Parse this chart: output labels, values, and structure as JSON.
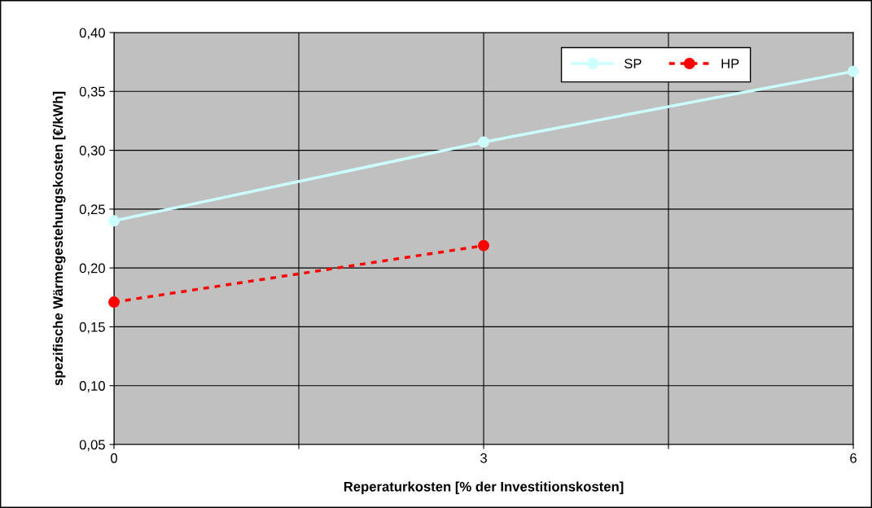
{
  "chart_data": {
    "type": "line",
    "xlabel": "Reperaturkosten [% der Investitionskosten]",
    "ylabel": "spezifische Wärmegestehungskosten [€/kWh]",
    "x": [
      0,
      3,
      6
    ],
    "series": [
      {
        "name": "SP",
        "color": "#ccffff",
        "values": [
          0.24,
          0.307,
          0.367
        ],
        "line_style": "solid"
      },
      {
        "name": "HP",
        "color": "#ff0000",
        "values": [
          0.171,
          0.219,
          null
        ],
        "line_style": "dashed"
      }
    ],
    "xlim": [
      0,
      6
    ],
    "xticks": [
      0,
      {
        "value": 1.5,
        "label": null
      },
      3,
      {
        "value": 4.5,
        "label": null
      },
      6
    ],
    "ylim": [
      0.05,
      0.4
    ],
    "yticks": [
      {
        "value": 0.05,
        "label": "0,05"
      },
      {
        "value": 0.1,
        "label": "0,10"
      },
      {
        "value": 0.15,
        "label": "0,15"
      },
      {
        "value": 0.2,
        "label": "0,20"
      },
      {
        "value": 0.25,
        "label": "0,25"
      },
      {
        "value": 0.3,
        "label": "0,30"
      },
      {
        "value": 0.35,
        "label": "0,35"
      },
      {
        "value": 0.4,
        "label": "0,40"
      }
    ],
    "grid": true,
    "legend": "top right",
    "marker": "circle"
  }
}
